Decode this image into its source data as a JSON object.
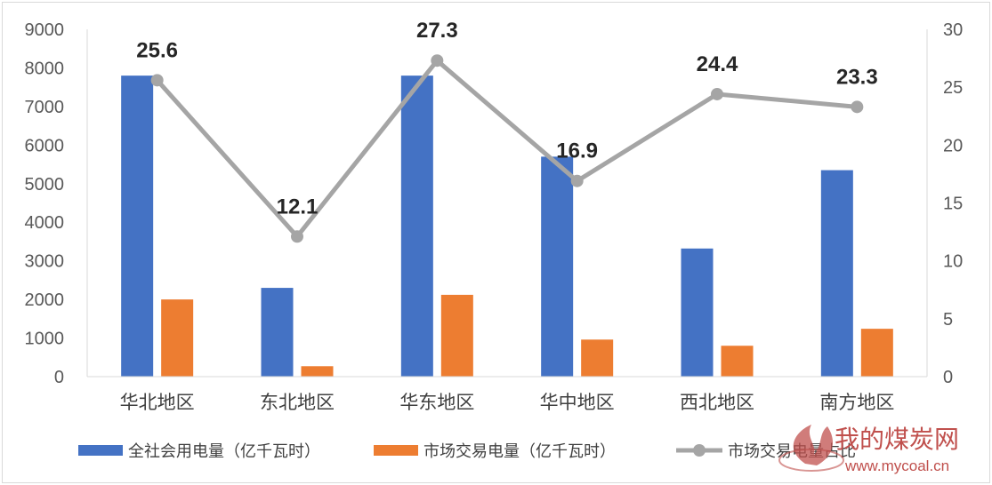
{
  "chart_data": {
    "type": "bar",
    "categories": [
      "华北地区",
      "东北地区",
      "华东地区",
      "华中地区",
      "西北地区",
      "南方地区"
    ],
    "series": [
      {
        "name": "全社会用电量（亿千瓦时）",
        "kind": "bar",
        "axis": "left",
        "color": "#4472c4",
        "values": [
          7800,
          2300,
          7800,
          5700,
          3320,
          5350
        ]
      },
      {
        "name": "市场交易电量（亿千瓦时）",
        "kind": "bar",
        "axis": "left",
        "color": "#ed7d31",
        "values": [
          2000,
          270,
          2120,
          960,
          800,
          1240
        ]
      },
      {
        "name": "市场交易电量占比",
        "kind": "line",
        "axis": "right",
        "color": "#a5a5a5",
        "values": [
          25.6,
          12.1,
          27.3,
          16.9,
          24.4,
          23.3
        ],
        "labels": [
          "25.6",
          "12.1",
          "27.3",
          "16.9",
          "24.4",
          "23.3"
        ]
      }
    ],
    "y_left": {
      "min": 0,
      "max": 9000,
      "ticks": [
        "0",
        "1000",
        "2000",
        "3000",
        "4000",
        "5000",
        "6000",
        "7000",
        "8000",
        "9000"
      ]
    },
    "y_right": {
      "min": 0,
      "max": 30,
      "ticks": [
        "0",
        "5",
        "10",
        "15",
        "20",
        "25",
        "30"
      ]
    },
    "grid": false,
    "legend_position": "bottom",
    "legend": [
      "全社会用电量（亿千瓦时）",
      "市场交易电量（亿千瓦时）",
      "市场交易电量占比"
    ]
  },
  "watermark": {
    "text": "我的煤炭网",
    "url": "www.mycoal.cn",
    "color": "#c0504d"
  }
}
